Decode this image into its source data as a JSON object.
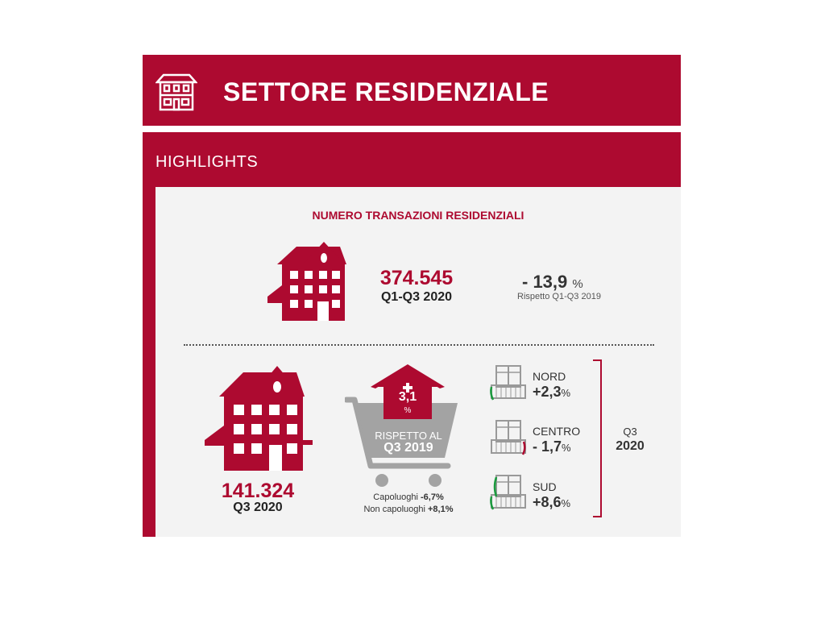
{
  "header": {
    "title": "SETTORE RESIDENZIALE",
    "icon": "residential-building-icon",
    "color": "#ad0a30"
  },
  "highlights": {
    "label": "HIGHLIGHTS"
  },
  "section": {
    "title": "NUMERO TRANSAZIONI RESIDENZIALI"
  },
  "annual": {
    "value": "374.545",
    "period": "Q1-Q3 2020",
    "change": "- 13,9",
    "change_unit": "%",
    "comparison": "Rispetto Q1-Q3 2019"
  },
  "quarterly": {
    "value": "141.324",
    "period": "Q3 2020",
    "change": "3,1",
    "change_unit": "%",
    "comparison_line1": "RISPETTO AL",
    "comparison_line2": "Q3 2019",
    "capoluoghi_label": "Capoluoghi",
    "capoluoghi_value": "-6,7%",
    "non_capoluoghi_label": "Non capoluoghi",
    "non_capoluoghi_value": "+8,1%"
  },
  "regions": {
    "items": [
      {
        "name": "NORD",
        "value": "+2,3",
        "unit": "%"
      },
      {
        "name": "CENTRO",
        "value": "- 1,7",
        "unit": "%"
      },
      {
        "name": "SUD",
        "value": "+8,6",
        "unit": "%"
      }
    ],
    "bracket_label_line1": "Q3",
    "bracket_label_line2": "2020"
  }
}
